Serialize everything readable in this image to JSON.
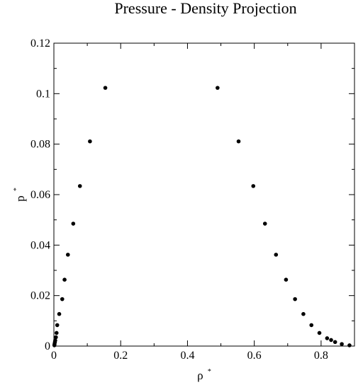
{
  "chart_data": {
    "type": "scatter",
    "title": "Pressure - Density Projection",
    "xlabel": "ρ",
    "xlabel_sup": "*",
    "ylabel": "p",
    "ylabel_sup": "*",
    "xlim": [
      0,
      0.9
    ],
    "ylim": [
      0,
      0.12
    ],
    "xticks": [
      0,
      0.2,
      0.4,
      0.6,
      0.8
    ],
    "xtick_labels": [
      "0",
      "0.2",
      "0.4",
      "0.6",
      "0.8"
    ],
    "yticks": [
      0,
      0.02,
      0.04,
      0.06,
      0.08,
      0.1,
      0.12
    ],
    "ytick_labels": [
      "0",
      "0.02",
      "0.04",
      "0.06",
      "0.08",
      "0.1",
      "0.12"
    ],
    "grid": false,
    "marker_color": "#000000",
    "series": [
      {
        "points": [
          [
            0.0015,
            0.0003
          ],
          [
            0.002,
            0.0008
          ],
          [
            0.003,
            0.0015
          ],
          [
            0.004,
            0.0022
          ],
          [
            0.006,
            0.0035
          ],
          [
            0.008,
            0.0052
          ],
          [
            0.01,
            0.0083
          ],
          [
            0.016,
            0.0127
          ],
          [
            0.025,
            0.0186
          ],
          [
            0.032,
            0.0263
          ],
          [
            0.042,
            0.0362
          ],
          [
            0.058,
            0.0485
          ],
          [
            0.078,
            0.0634
          ],
          [
            0.108,
            0.0811
          ],
          [
            0.154,
            0.1023
          ],
          [
            0.49,
            0.1023
          ],
          [
            0.553,
            0.0811
          ],
          [
            0.597,
            0.0634
          ],
          [
            0.632,
            0.0485
          ],
          [
            0.665,
            0.0362
          ],
          [
            0.695,
            0.0263
          ],
          [
            0.722,
            0.0186
          ],
          [
            0.747,
            0.0127
          ],
          [
            0.771,
            0.0083
          ],
          [
            0.795,
            0.0052
          ],
          [
            0.818,
            0.0031
          ],
          [
            0.83,
            0.0024
          ],
          [
            0.842,
            0.0016
          ],
          [
            0.862,
            0.0008
          ],
          [
            0.885,
            0.0003
          ]
        ]
      }
    ]
  }
}
